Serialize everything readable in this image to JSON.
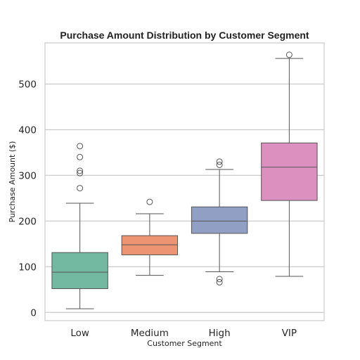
{
  "chart_data": {
    "type": "box",
    "title": "Purchase Amount Distribution by Customer Segment",
    "xlabel": "Customer Segment",
    "ylabel": "Purchase Amount ($)",
    "ylim": [
      -18,
      590
    ],
    "yticks": [
      0,
      100,
      200,
      300,
      400,
      500
    ],
    "grid": true,
    "categories": [
      "Low",
      "Medium",
      "High",
      "VIP"
    ],
    "series": [
      {
        "category": "Low",
        "color": "#73b8a0",
        "whisker_low": 8,
        "q1": 52,
        "median": 88,
        "q3": 131,
        "whisker_high": 239,
        "outliers": [
          272,
          305,
          310,
          340,
          364
        ]
      },
      {
        "category": "Medium",
        "color": "#ed9572",
        "whisker_low": 81,
        "q1": 126,
        "median": 148,
        "q3": 168,
        "whisker_high": 216,
        "outliers": [
          242
        ]
      },
      {
        "category": "High",
        "color": "#929fc5",
        "whisker_low": 89,
        "q1": 173,
        "median": 200,
        "q3": 231,
        "whisker_high": 313,
        "outliers": [
          66,
          73,
          323,
          330
        ]
      },
      {
        "category": "VIP",
        "color": "#dc90bf",
        "whisker_low": 79,
        "q1": 245,
        "median": 318,
        "q3": 371,
        "whisker_high": 556,
        "outliers": [
          564
        ]
      }
    ]
  }
}
